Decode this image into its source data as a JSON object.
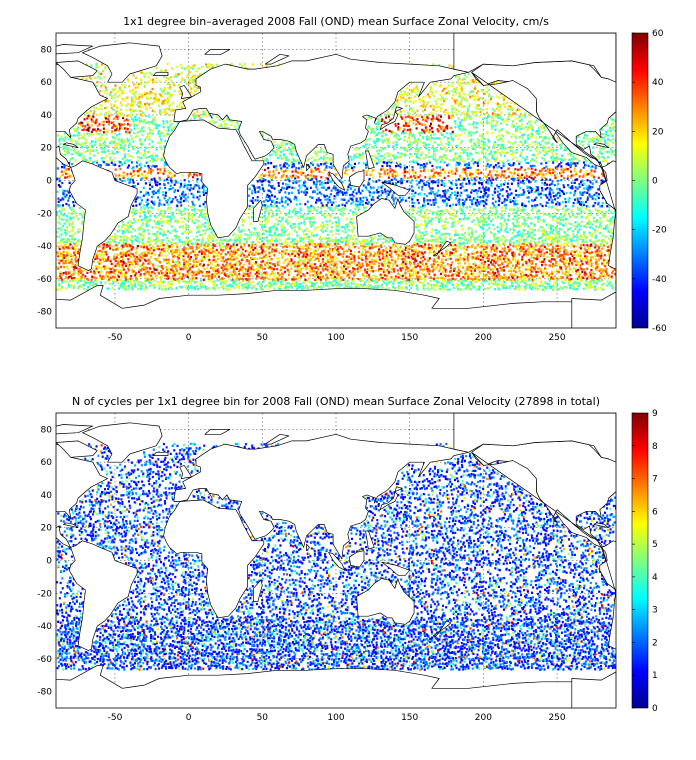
{
  "chart_data": [
    {
      "type": "heatmap",
      "title": "1x1 degree bin–averaged 2008 Fall (OND) mean Surface Zonal Velocity, cm/s",
      "xlabel": "",
      "ylabel": "",
      "xlim": [
        -90,
        290
      ],
      "ylim": [
        -90,
        90
      ],
      "x_ticks": [
        -50,
        0,
        50,
        100,
        150,
        200,
        250
      ],
      "y_ticks": [
        -80,
        -60,
        -40,
        -20,
        0,
        20,
        40,
        60,
        80
      ],
      "grid": true,
      "colorbar": {
        "min": -60,
        "max": 60,
        "ticks": [
          -60,
          -40,
          -20,
          0,
          20,
          40,
          60
        ],
        "colormap": "jet",
        "position": "right"
      }
    },
    {
      "type": "heatmap",
      "title": "N of cycles per 1x1 degree bin for 2008 Fall (OND) mean Surface Zonal Velocity (27898 in total)",
      "xlabel": "",
      "ylabel": "",
      "xlim": [
        -90,
        290
      ],
      "ylim": [
        -90,
        90
      ],
      "x_ticks": [
        -50,
        0,
        50,
        100,
        150,
        200,
        250
      ],
      "y_ticks": [
        -80,
        -60,
        -40,
        -20,
        0,
        20,
        40,
        60,
        80
      ],
      "grid": true,
      "total_cycles": 27898,
      "colorbar": {
        "min": 0,
        "max": 9,
        "ticks": [
          0,
          1,
          2,
          3,
          4,
          5,
          6,
          7,
          8,
          9
        ],
        "colormap": "jet",
        "position": "right"
      }
    }
  ]
}
